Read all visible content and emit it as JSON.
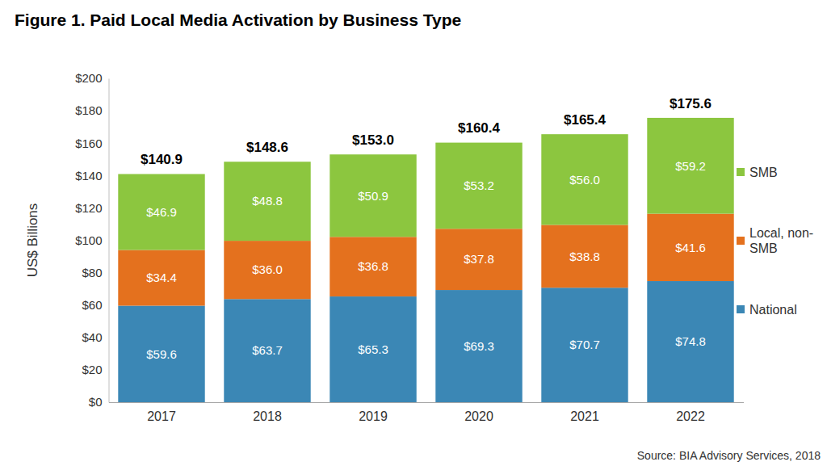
{
  "chart_data": {
    "type": "bar",
    "title": "Figure 1. Paid Local Media Activation by Business Type",
    "y_label": "US$ Billions",
    "source": "Source: BIA Advisory Services, 2018",
    "categories": [
      "2017",
      "2018",
      "2019",
      "2020",
      "2021",
      "2022"
    ],
    "series": [
      {
        "name": "National",
        "color": "#3b87b5",
        "values": [
          59.6,
          63.7,
          65.3,
          69.3,
          70.7,
          74.8
        ],
        "value_labels": [
          "$59.6",
          "$63.7",
          "$65.3",
          "$69.3",
          "$70.7",
          "$74.8"
        ]
      },
      {
        "name": "Local, non-SMB",
        "color": "#e4711e",
        "values": [
          34.4,
          36.0,
          36.8,
          37.8,
          38.8,
          41.6
        ],
        "value_labels": [
          "$34.4",
          "$36.0",
          "$36.8",
          "$37.8",
          "$38.8",
          "$41.6"
        ]
      },
      {
        "name": "SMB",
        "color": "#8cc63f",
        "values": [
          46.9,
          48.8,
          50.9,
          53.2,
          56.0,
          59.2
        ],
        "value_labels": [
          "$46.9",
          "$48.8",
          "$50.9",
          "$53.2",
          "$56.0",
          "$59.2"
        ]
      }
    ],
    "totals": [
      140.9,
      148.6,
      153.0,
      160.4,
      165.4,
      175.6
    ],
    "total_labels": [
      "$140.9",
      "$148.6",
      "$153.0",
      "$160.4",
      "$165.4",
      "$175.6"
    ],
    "ylim": [
      0,
      200
    ],
    "yticks": [
      {
        "value": 0,
        "label": "$0"
      },
      {
        "value": 20,
        "label": "$20"
      },
      {
        "value": 40,
        "label": "$40"
      },
      {
        "value": 60,
        "label": "$60"
      },
      {
        "value": 80,
        "label": "$80"
      },
      {
        "value": 100,
        "label": "$100"
      },
      {
        "value": 120,
        "label": "$120"
      },
      {
        "value": 140,
        "label": "$140"
      },
      {
        "value": 160,
        "label": "$160"
      },
      {
        "value": 180,
        "label": "$180"
      },
      {
        "value": 200,
        "label": "$200"
      }
    ],
    "stacked": true,
    "data_labels": true,
    "grid": false,
    "legend": "right"
  }
}
